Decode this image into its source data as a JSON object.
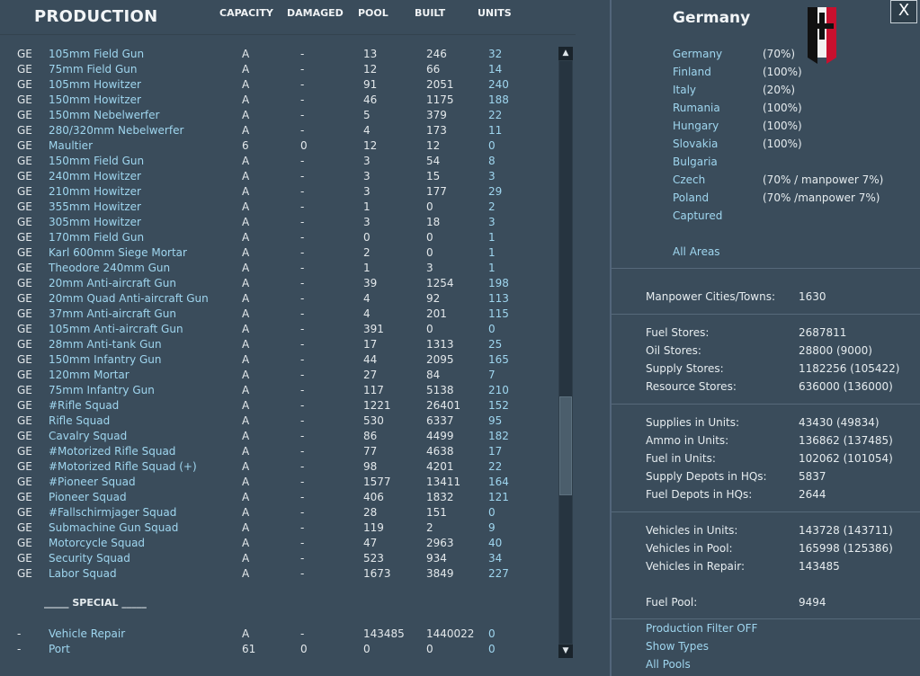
{
  "header": {
    "title": "PRODUCTION",
    "columns": [
      "CAPACITY",
      "DAMAGED",
      "POOL",
      "BUILT",
      "UNITS"
    ]
  },
  "rows": [
    {
      "nat": "GE",
      "name": "105mm Field Gun",
      "cap": "A",
      "dmg": "-",
      "pool": "13",
      "built": "246",
      "units": "32"
    },
    {
      "nat": "GE",
      "name": "75mm Field Gun",
      "cap": "A",
      "dmg": "-",
      "pool": "12",
      "built": "66",
      "units": "14"
    },
    {
      "nat": "GE",
      "name": "105mm Howitzer",
      "cap": "A",
      "dmg": "-",
      "pool": "91",
      "built": "2051",
      "units": "240"
    },
    {
      "nat": "GE",
      "name": "150mm Howitzer",
      "cap": "A",
      "dmg": "-",
      "pool": "46",
      "built": "1175",
      "units": "188"
    },
    {
      "nat": "GE",
      "name": "150mm Nebelwerfer",
      "cap": "A",
      "dmg": "-",
      "pool": "5",
      "built": "379",
      "units": "22"
    },
    {
      "nat": "GE",
      "name": "280/320mm Nebelwerfer",
      "cap": "A",
      "dmg": "-",
      "pool": "4",
      "built": "173",
      "units": "11"
    },
    {
      "nat": "GE",
      "name": "Maultier",
      "cap": "6",
      "dmg": "0",
      "pool": "12",
      "built": "12",
      "units": "0"
    },
    {
      "nat": "GE",
      "name": "150mm Field Gun",
      "cap": "A",
      "dmg": "-",
      "pool": "3",
      "built": "54",
      "units": "8"
    },
    {
      "nat": "GE",
      "name": "240mm Howitzer",
      "cap": "A",
      "dmg": "-",
      "pool": "3",
      "built": "15",
      "units": "3"
    },
    {
      "nat": "GE",
      "name": "210mm Howitzer",
      "cap": "A",
      "dmg": "-",
      "pool": "3",
      "built": "177",
      "units": "29"
    },
    {
      "nat": "GE",
      "name": "355mm Howitzer",
      "cap": "A",
      "dmg": "-",
      "pool": "1",
      "built": "0",
      "units": "2"
    },
    {
      "nat": "GE",
      "name": "305mm Howitzer",
      "cap": "A",
      "dmg": "-",
      "pool": "3",
      "built": "18",
      "units": "3"
    },
    {
      "nat": "GE",
      "name": "170mm Field Gun",
      "cap": "A",
      "dmg": "-",
      "pool": "0",
      "built": "0",
      "units": "1"
    },
    {
      "nat": "GE",
      "name": "Karl 600mm Siege Mortar",
      "cap": "A",
      "dmg": "-",
      "pool": "2",
      "built": "0",
      "units": "1"
    },
    {
      "nat": "GE",
      "name": "Theodore 240mm Gun",
      "cap": "A",
      "dmg": "-",
      "pool": "1",
      "built": "3",
      "units": "1"
    },
    {
      "nat": "GE",
      "name": "20mm Anti-aircraft Gun",
      "cap": "A",
      "dmg": "-",
      "pool": "39",
      "built": "1254",
      "units": "198"
    },
    {
      "nat": "GE",
      "name": "20mm Quad Anti-aircraft Gun",
      "cap": "A",
      "dmg": "-",
      "pool": "4",
      "built": "92",
      "units": "113"
    },
    {
      "nat": "GE",
      "name": "37mm Anti-aircraft Gun",
      "cap": "A",
      "dmg": "-",
      "pool": "4",
      "built": "201",
      "units": "115"
    },
    {
      "nat": "GE",
      "name": "105mm Anti-aircraft Gun",
      "cap": "A",
      "dmg": "-",
      "pool": "391",
      "built": "0",
      "units": "0"
    },
    {
      "nat": "GE",
      "name": "28mm Anti-tank Gun",
      "cap": "A",
      "dmg": "-",
      "pool": "17",
      "built": "1313",
      "units": "25"
    },
    {
      "nat": "GE",
      "name": "150mm Infantry Gun",
      "cap": "A",
      "dmg": "-",
      "pool": "44",
      "built": "2095",
      "units": "165"
    },
    {
      "nat": "GE",
      "name": "120mm Mortar",
      "cap": "A",
      "dmg": "-",
      "pool": "27",
      "built": "84",
      "units": "7"
    },
    {
      "nat": "GE",
      "name": "75mm Infantry Gun",
      "cap": "A",
      "dmg": "-",
      "pool": "117",
      "built": "5138",
      "units": "210"
    },
    {
      "nat": "GE",
      "name": "#Rifle Squad",
      "cap": "A",
      "dmg": "-",
      "pool": "1221",
      "built": "26401",
      "units": "152"
    },
    {
      "nat": "GE",
      "name": "Rifle Squad",
      "cap": "A",
      "dmg": "-",
      "pool": "530",
      "built": "6337",
      "units": "95"
    },
    {
      "nat": "GE",
      "name": "Cavalry Squad",
      "cap": "A",
      "dmg": "-",
      "pool": "86",
      "built": "4499",
      "units": "182"
    },
    {
      "nat": "GE",
      "name": "#Motorized Rifle Squad",
      "cap": "A",
      "dmg": "-",
      "pool": "77",
      "built": "4638",
      "units": "17"
    },
    {
      "nat": "GE",
      "name": "#Motorized Rifle Squad (+)",
      "cap": "A",
      "dmg": "-",
      "pool": "98",
      "built": "4201",
      "units": "22"
    },
    {
      "nat": "GE",
      "name": "#Pioneer Squad",
      "cap": "A",
      "dmg": "-",
      "pool": "1577",
      "built": "13411",
      "units": "164"
    },
    {
      "nat": "GE",
      "name": "Pioneer Squad",
      "cap": "A",
      "dmg": "-",
      "pool": "406",
      "built": "1832",
      "units": "121"
    },
    {
      "nat": "GE",
      "name": "#Fallschirmjager Squad",
      "cap": "A",
      "dmg": "-",
      "pool": "28",
      "built": "151",
      "units": "0"
    },
    {
      "nat": "GE",
      "name": "Submachine Gun Squad",
      "cap": "A",
      "dmg": "-",
      "pool": "119",
      "built": "2",
      "units": "9"
    },
    {
      "nat": "GE",
      "name": "Motorcycle Squad",
      "cap": "A",
      "dmg": "-",
      "pool": "47",
      "built": "2963",
      "units": "40"
    },
    {
      "nat": "GE",
      "name": "Security Squad",
      "cap": "A",
      "dmg": "-",
      "pool": "523",
      "built": "934",
      "units": "34"
    },
    {
      "nat": "GE",
      "name": "Labor Squad",
      "cap": "A",
      "dmg": "-",
      "pool": "1673",
      "built": "3849",
      "units": "227"
    }
  ],
  "special_label": "_____ SPECIAL _____",
  "special_rows": [
    {
      "nat": "-",
      "name": "Vehicle Repair",
      "cap": "A",
      "dmg": "-",
      "pool": "143485",
      "built": "1440022",
      "units": "0"
    },
    {
      "nat": "-",
      "name": "Port",
      "cap": "61",
      "dmg": "0",
      "pool": "0",
      "built": "0",
      "units": "0"
    }
  ],
  "scrollbar": {
    "up_icon": "▲",
    "down_icon": "▼"
  },
  "nation": {
    "name": "Germany",
    "close_label": "X",
    "flag_colors": {
      "black": "#111111",
      "white": "#f2f2f2",
      "red": "#c8102e"
    }
  },
  "areas": [
    {
      "name": "Germany",
      "pct": "(70%)"
    },
    {
      "name": "Finland",
      "pct": "(100%)"
    },
    {
      "name": "Italy",
      "pct": "(20%)"
    },
    {
      "name": "Rumania",
      "pct": "(100%)"
    },
    {
      "name": "Hungary",
      "pct": "(100%)"
    },
    {
      "name": "Slovakia",
      "pct": "(100%)"
    },
    {
      "name": "Bulgaria",
      "pct": ""
    },
    {
      "name": "Czech",
      "pct": "(70% / manpower 7%)"
    },
    {
      "name": "Poland",
      "pct": "(70% /manpower 7%)"
    },
    {
      "name": "Captured",
      "pct": ""
    }
  ],
  "all_areas": "All Areas",
  "stats": {
    "manpower": {
      "label": "Manpower Cities/Towns:",
      "value": "1630"
    },
    "stores": [
      {
        "label": "Fuel Stores:",
        "value": "2687811"
      },
      {
        "label": "Oil Stores:",
        "value": "28800 (9000)"
      },
      {
        "label": "Supply Stores:",
        "value": "1182256 (105422)"
      },
      {
        "label": "Resource Stores:",
        "value": "636000 (136000)"
      }
    ],
    "units": [
      {
        "label": "Supplies in Units:",
        "value": "43430 (49834)"
      },
      {
        "label": "Ammo in Units:",
        "value": "136862 (137485)"
      },
      {
        "label": "Fuel in Units:",
        "value": "102062 (101054)"
      },
      {
        "label": "Supply Depots in HQs:",
        "value": "5837"
      },
      {
        "label": "Fuel Depots in HQs:",
        "value": "2644"
      }
    ],
    "vehicles": [
      {
        "label": "Vehicles in Units:",
        "value": "143728 (143711)"
      },
      {
        "label": "Vehicles in Pool:",
        "value": "165998 (125386)"
      },
      {
        "label": "Vehicles in Repair:",
        "value": "143485"
      }
    ],
    "fuel_pool": {
      "label": "Fuel Pool:",
      "value": "9494"
    }
  },
  "filters": [
    "Production Filter OFF",
    "Show Types",
    "All Pools"
  ],
  "colors": {
    "background": "#3a4c5b",
    "link": "#9fd6ef",
    "text": "#e6ecef"
  }
}
